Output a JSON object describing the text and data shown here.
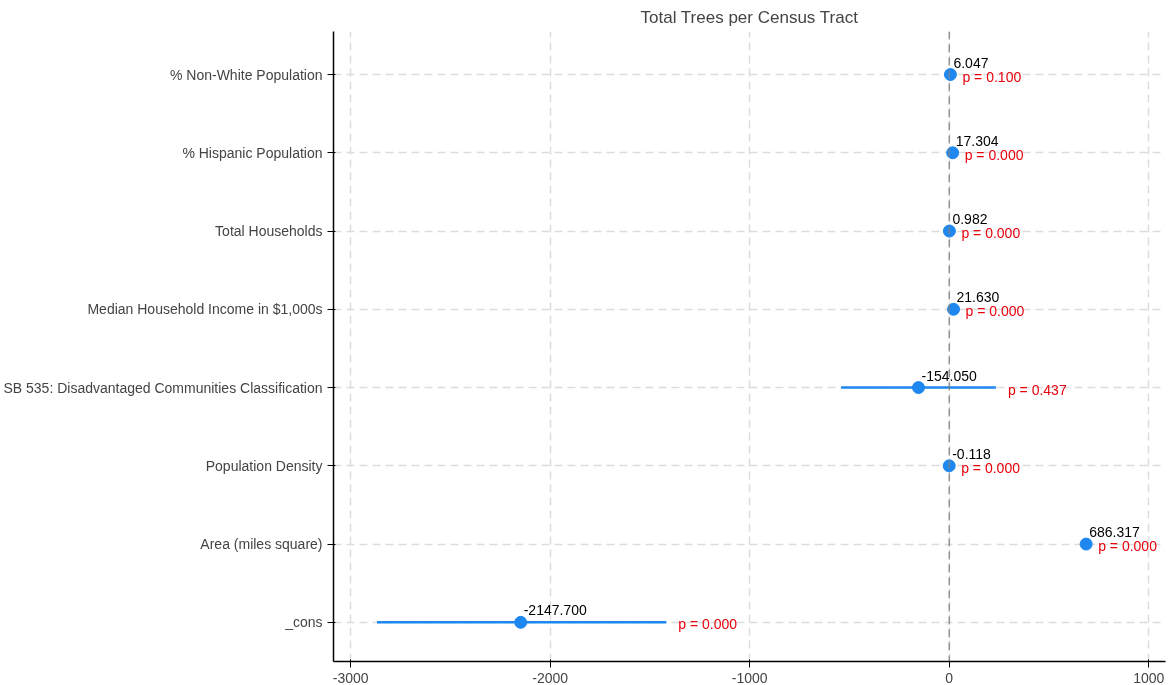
{
  "chart_data": {
    "type": "scatter",
    "orientation": "horizontal",
    "title": "Total Trees per Census Tract",
    "categories": [
      "% Non-White Population",
      "% Hispanic Population",
      "Total Households",
      "Median Household Income in $1,000s",
      "SB 535: Disadvantaged Communities Classification",
      "Population Density",
      "Area (miles square)",
      "_cons"
    ],
    "values": [
      6.047,
      17.304,
      0.982,
      21.63,
      -154.05,
      -0.118,
      686.317,
      -2147.7
    ],
    "errors": [
      null,
      null,
      null,
      null,
      [
        -542,
        234
      ],
      null,
      null,
      [
        -2868,
        -1418
      ]
    ],
    "value_labels": [
      "6.047",
      "17.304",
      "0.982",
      "21.630",
      "-154.050",
      "-0.118",
      "686.317",
      "-2147.700"
    ],
    "color": "#1e88f0",
    "marker": "circle",
    "xlim": [
      -3086,
      1084
    ],
    "xticks": [
      -3000,
      -2000,
      -1000,
      0,
      1000
    ],
    "grid": true,
    "ref_lines": [
      {
        "axis": "x",
        "value": 0,
        "color": "#808080",
        "line_style": "dashed"
      }
    ],
    "annotations": [
      {
        "text": "p = 0.100",
        "x": 6.047,
        "y": "% Non-White Population"
      },
      {
        "text": "p = 0.000",
        "x": 17.304,
        "y": "% Hispanic Population"
      },
      {
        "text": "p = 0.000",
        "x": 0.982,
        "y": "Total Households"
      },
      {
        "text": "p = 0.000",
        "x": 21.63,
        "y": "Median Household Income in $1,000s"
      },
      {
        "text": "p = 0.437",
        "x": 234,
        "y": "SB 535: Disadvantaged Communities Classification"
      },
      {
        "text": "p = 0.000",
        "x": -0.118,
        "y": "Population Density"
      },
      {
        "text": "p = 0.000",
        "x": 686.317,
        "y": "Area (miles square)"
      },
      {
        "text": "p = 0.000",
        "x": -1418,
        "y": "_cons"
      }
    ]
  }
}
